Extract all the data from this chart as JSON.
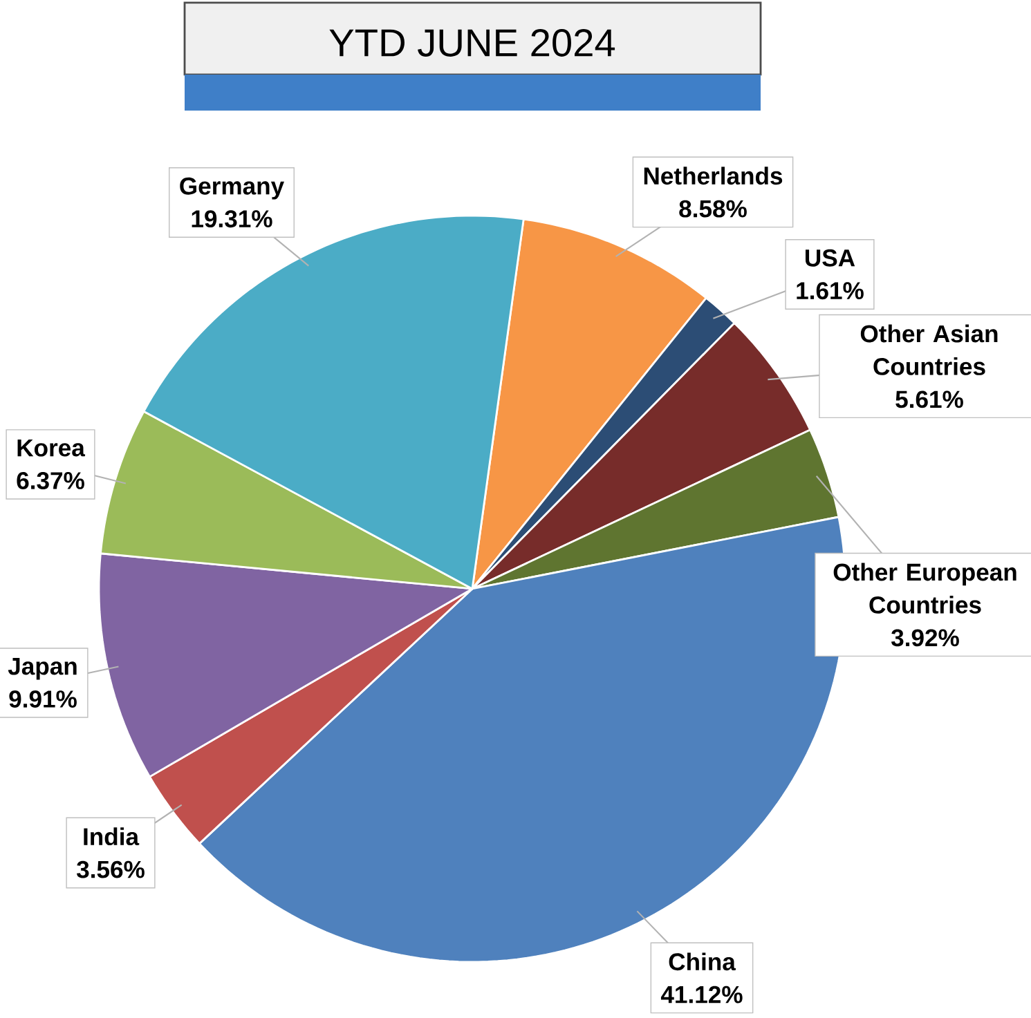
{
  "chart_data": {
    "type": "pie",
    "title": "YTD JUNE 2024",
    "categories": [
      "Netherlands",
      "USA",
      "Other Asian Countries",
      "Other European Countries",
      "China",
      "India",
      "Japan",
      "Korea",
      "Germany"
    ],
    "values": [
      8.58,
      1.61,
      5.61,
      3.92,
      41.12,
      3.56,
      9.91,
      6.37,
      19.31
    ],
    "colors": [
      "#f79646",
      "#2c4d75",
      "#772c2a",
      "#5f7530",
      "#4f81bd",
      "#c0504d",
      "#8064a2",
      "#9bbb59",
      "#4bacc6"
    ],
    "value_labels": [
      "8.58%",
      "1.61%",
      "5.61%",
      "3.92%",
      "41.12%",
      "3.56%",
      "9.91%",
      "6.37%",
      "19.31%"
    ]
  }
}
